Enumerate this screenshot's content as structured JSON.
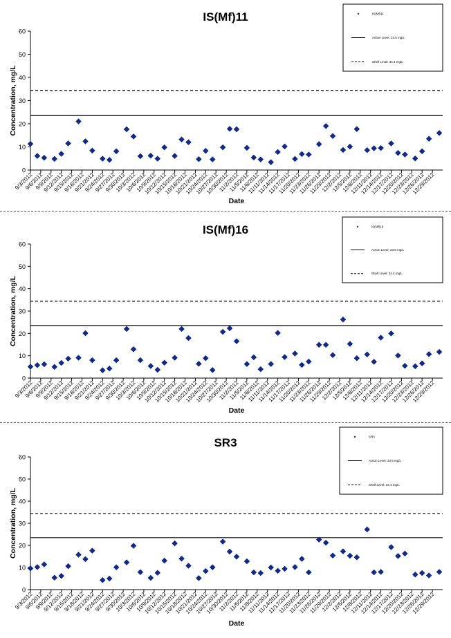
{
  "dates": [
    "9/3/2012",
    "9/6/2012",
    "9/9/2012",
    "9/12/2012",
    "9/15/2012",
    "9/18/2012",
    "9/21/2012",
    "9/24/2012",
    "9/27/2012",
    "9/30/2012",
    "10/3/2012",
    "10/6/2012",
    "10/9/2012",
    "10/12/2012",
    "10/15/2012",
    "10/18/2012",
    "10/21/2012",
    "10/24/2012",
    "10/27/2012",
    "10/30/2012",
    "11/2/2012",
    "11/5/2012",
    "11/8/2012",
    "11/11/2012",
    "11/14/2012",
    "11/17/2012",
    "11/20/2012",
    "11/23/2012",
    "11/26/2012",
    "11/29/2012",
    "12/2/2012",
    "12/5/2012",
    "12/8/2012",
    "12/11/2012",
    "12/14/2012",
    "12/17/2012",
    "12/20/2012",
    "12/23/2012",
    "12/26/2012",
    "12/29/2012"
  ],
  "chart_data": [
    {
      "type": "scatter",
      "title": "IS(Mf)11",
      "xlabel": "Date",
      "ylabel": "Concentration, mg/L",
      "ylim": [
        0,
        60
      ],
      "yticks": [
        0,
        10,
        20,
        30,
        40,
        50,
        60
      ],
      "grid": false,
      "legend_position": "top-right",
      "legend": [
        "IS(Mf)11",
        "Action Level: 23.5 mg/L",
        "Shelf Level: 34.4 mg/L"
      ],
      "reference_lines": [
        {
          "name": "Action Level: 23.5 mg/L",
          "value": 23.5,
          "style": "solid"
        },
        {
          "name": "Shelf Level: 34.4 mg/L",
          "value": 34.4,
          "style": "dashed"
        }
      ],
      "series": [
        {
          "name": "IS(Mf)11",
          "x": [
            "9/3/2012",
            "9/5/2012",
            "9/7/2012",
            "9/10/2012",
            "9/12/2012",
            "9/14/2012",
            "9/17/2012",
            "9/19/2012",
            "9/21/2012",
            "9/24/2012",
            "9/26/2012",
            "9/28/2012",
            "10/1/2012",
            "10/3/2012",
            "10/5/2012",
            "10/8/2012",
            "10/10/2012",
            "10/12/2012",
            "10/15/2012",
            "10/17/2012",
            "10/19/2012",
            "10/22/2012",
            "10/24/2012",
            "10/26/2012",
            "10/29/2012",
            "10/31/2012",
            "11/2/2012",
            "11/5/2012",
            "11/7/2012",
            "11/9/2012",
            "11/12/2012",
            "11/14/2012",
            "11/16/2012",
            "11/19/2012",
            "11/21/2012",
            "11/23/2012",
            "11/26/2012",
            "11/28/2012",
            "11/30/2012",
            "12/3/2012",
            "12/5/2012",
            "12/7/2012",
            "12/10/2012",
            "12/12/2012",
            "12/14/2012",
            "12/17/2012",
            "12/19/2012",
            "12/21/2012",
            "12/24/2012",
            "12/26/2012",
            "12/28/2012",
            "12/31/2012"
          ],
          "values": [
            11.3,
            6.1,
            5.3,
            4.8,
            7.0,
            11.5,
            21.0,
            12.4,
            8.4,
            4.9,
            4.4,
            8.1,
            17.6,
            14.5,
            6.0,
            6.2,
            4.9,
            9.8,
            6.1,
            13.2,
            12.0,
            4.7,
            8.3,
            4.6,
            9.8,
            17.8,
            17.6,
            9.6,
            5.4,
            4.6,
            3.4,
            7.8,
            10.2,
            4.8,
            6.9,
            6.7,
            11.2,
            19.0,
            14.7,
            8.7,
            10.1,
            17.7,
            8.6,
            9.4,
            9.5,
            11.5,
            7.4,
            6.7,
            5.0,
            8.1,
            13.5,
            16.0
          ]
        }
      ]
    },
    {
      "type": "scatter",
      "title": "IS(Mf)16",
      "xlabel": "Date",
      "ylabel": "Concentration, mg/L",
      "ylim": [
        0,
        60
      ],
      "yticks": [
        0,
        10,
        20,
        30,
        40,
        50,
        60
      ],
      "grid": false,
      "legend_position": "top-right",
      "legend": [
        "IS(Mf)16",
        "Action Level: 23.5 mg/L",
        "Shelf Level: 34.4 mg/L"
      ],
      "reference_lines": [
        {
          "name": "Action Level: 23.5 mg/L",
          "value": 23.5,
          "style": "solid"
        },
        {
          "name": "Shelf Level: 34.4 mg/L",
          "value": 34.4,
          "style": "dashed"
        }
      ],
      "series": [
        {
          "name": "IS(Mf)16",
          "x": [
            "9/3/2012",
            "9/5/2012",
            "9/7/2012",
            "9/10/2012",
            "9/12/2012",
            "9/14/2012",
            "9/17/2012",
            "9/19/2012",
            "9/21/2012",
            "9/24/2012",
            "9/26/2012",
            "9/28/2012",
            "10/1/2012",
            "10/3/2012",
            "10/5/2012",
            "10/8/2012",
            "10/10/2012",
            "10/12/2012",
            "10/15/2012",
            "10/17/2012",
            "10/19/2012",
            "10/22/2012",
            "10/24/2012",
            "10/26/2012",
            "10/29/2012",
            "10/31/2012",
            "11/2/2012",
            "11/5/2012",
            "11/7/2012",
            "11/9/2012",
            "11/12/2012",
            "11/14/2012",
            "11/16/2012",
            "11/19/2012",
            "11/21/2012",
            "11/23/2012",
            "11/26/2012",
            "11/28/2012",
            "11/30/2012",
            "12/3/2012",
            "12/5/2012",
            "12/7/2012",
            "12/10/2012",
            "12/12/2012",
            "12/14/2012",
            "12/17/2012",
            "12/19/2012",
            "12/21/2012",
            "12/24/2012",
            "12/26/2012",
            "12/28/2012",
            "12/31/2012"
          ],
          "values": [
            5.1,
            5.8,
            6.2,
            5.0,
            6.8,
            8.7,
            9.1,
            20.1,
            8.0,
            3.5,
            4.3,
            8.0,
            22.0,
            12.9,
            8.0,
            5.4,
            3.7,
            6.9,
            9.1,
            22.0,
            17.9,
            6.4,
            8.9,
            3.6,
            20.7,
            22.3,
            16.5,
            6.3,
            9.3,
            4.0,
            6.3,
            20.2,
            9.4,
            11.0,
            5.9,
            7.4,
            14.9,
            14.9,
            10.3,
            26.2,
            15.3,
            8.9,
            10.6,
            7.3,
            18.1,
            20.0,
            10.1,
            5.5,
            5.3,
            6.6,
            10.7,
            11.7
          ]
        }
      ]
    },
    {
      "type": "scatter",
      "title": "SR3",
      "xlabel": "Date",
      "ylabel": "Concentration, mg/L",
      "ylim": [
        0,
        60
      ],
      "yticks": [
        0,
        10,
        20,
        30,
        40,
        50,
        60
      ],
      "grid": false,
      "legend_position": "top-right",
      "legend": [
        "SR3",
        "Action Level: 23.5 mg/L",
        "Shelf Level: 34.4 mg/L"
      ],
      "reference_lines": [
        {
          "name": "Action Level: 23.5 mg/L",
          "value": 23.5,
          "style": "solid"
        },
        {
          "name": "Shelf Level: 34.4 mg/L",
          "value": 34.4,
          "style": "dashed"
        }
      ],
      "series": [
        {
          "name": "SR3",
          "x": [
            "9/3/2012",
            "9/5/2012",
            "9/7/2012",
            "9/10/2012",
            "9/12/2012",
            "9/14/2012",
            "9/17/2012",
            "9/19/2012",
            "9/21/2012",
            "9/24/2012",
            "9/26/2012",
            "9/28/2012",
            "10/1/2012",
            "10/3/2012",
            "10/5/2012",
            "10/8/2012",
            "10/10/2012",
            "10/12/2012",
            "10/15/2012",
            "10/17/2012",
            "10/19/2012",
            "10/22/2012",
            "10/24/2012",
            "10/26/2012",
            "10/29/2012",
            "10/31/2012",
            "11/2/2012",
            "11/5/2012",
            "11/7/2012",
            "11/9/2012",
            "11/12/2012",
            "11/14/2012",
            "11/16/2012",
            "11/19/2012",
            "11/21/2012",
            "11/23/2012",
            "11/26/2012",
            "11/28/2012",
            "11/30/2012",
            "12/3/2012",
            "12/5/2012",
            "12/7/2012",
            "12/10/2012",
            "12/12/2012",
            "12/14/2012",
            "12/17/2012",
            "12/19/2012",
            "12/21/2012",
            "12/24/2012",
            "12/26/2012",
            "12/28/2012",
            "12/31/2012"
          ],
          "values": [
            9.6,
            10.2,
            11.4,
            5.4,
            6.2,
            10.6,
            15.8,
            13.8,
            17.6,
            4.3,
            5.0,
            10.1,
            12.3,
            19.8,
            7.9,
            5.3,
            7.6,
            13.1,
            20.9,
            14.0,
            10.8,
            5.2,
            8.4,
            10.1,
            21.7,
            17.2,
            14.9,
            12.8,
            7.8,
            7.5,
            10.0,
            8.5,
            9.4,
            10.2,
            13.9,
            7.8,
            22.6,
            21.2,
            15.4,
            17.3,
            15.3,
            14.6,
            27.2,
            7.8,
            8.0,
            19.2,
            15.2,
            16.3,
            6.8,
            7.5,
            6.4,
            8.0
          ]
        }
      ]
    }
  ]
}
